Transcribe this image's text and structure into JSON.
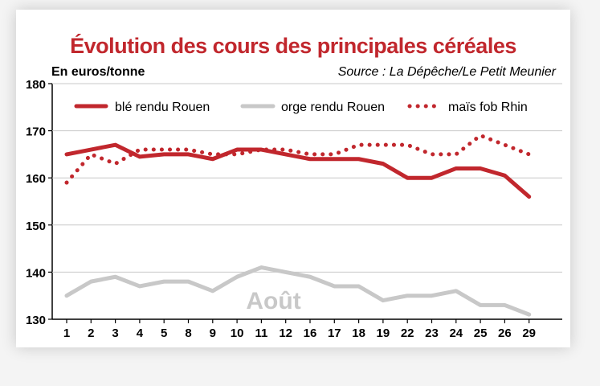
{
  "chart_data": {
    "type": "line",
    "title": "Évolution des cours des principales céréales",
    "ylabel": "En euros/tonne",
    "source": "Source : La Dépêche/Le Petit Meunier",
    "xlabel": "",
    "annotation": "Août",
    "categories": [
      "1",
      "2",
      "3",
      "4",
      "5",
      "8",
      "9",
      "10",
      "11",
      "12",
      "16",
      "17",
      "18",
      "19",
      "22",
      "23",
      "24",
      "25",
      "26",
      "29"
    ],
    "ylim": [
      130,
      180
    ],
    "yticks": [
      130,
      140,
      150,
      160,
      170,
      180
    ],
    "grid": true,
    "legend_position": "top",
    "series": [
      {
        "name": "blé rendu Rouen",
        "style": "solid",
        "color": "#c1272d",
        "values": [
          165,
          166,
          167,
          164.5,
          165,
          165,
          164,
          166,
          166,
          165,
          164,
          164,
          164,
          163,
          160,
          160,
          162,
          162,
          160.5,
          156
        ]
      },
      {
        "name": "orge rendu Rouen",
        "style": "solid",
        "color": "#c8c8c8",
        "values": [
          135,
          138,
          139,
          137,
          138,
          138,
          136,
          139,
          141,
          140,
          139,
          137,
          137,
          134,
          135,
          135,
          136,
          133,
          133,
          131
        ]
      },
      {
        "name": "maïs fob Rhin",
        "style": "dotted",
        "color": "#c1272d",
        "values": [
          159,
          165,
          163,
          166,
          166,
          166,
          165,
          165,
          166,
          166,
          165,
          165,
          167,
          167,
          167,
          165,
          165,
          169,
          167,
          165
        ]
      }
    ]
  },
  "colors": {
    "title": "#c1272d",
    "grid": "#c8c8c8",
    "annotation": "#c8c8c8"
  }
}
